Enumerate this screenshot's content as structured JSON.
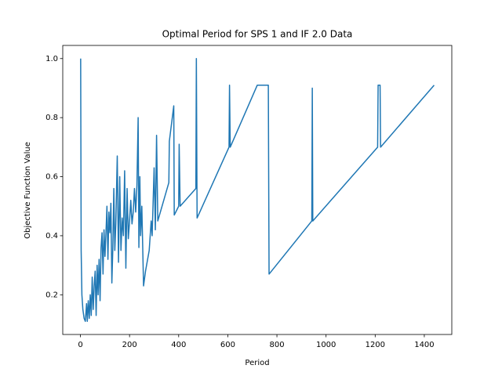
{
  "chart_data": {
    "type": "line",
    "title": "Optimal Period for SPS 1 and IF 2.0 Data",
    "xlabel": "Period",
    "ylabel": "Objective Function Value",
    "x": [
      1,
      3,
      6,
      10,
      15,
      20,
      25,
      28,
      32,
      36,
      40,
      44,
      48,
      52,
      56,
      60,
      64,
      68,
      72,
      76,
      80,
      84,
      88,
      92,
      96,
      100,
      104,
      108,
      112,
      116,
      120,
      124,
      128,
      132,
      136,
      140,
      144,
      150,
      155,
      160,
      165,
      170,
      175,
      180,
      185,
      190,
      195,
      200,
      205,
      210,
      215,
      220,
      225,
      230,
      235,
      238,
      242,
      245,
      250,
      257,
      265,
      280,
      288,
      292,
      300,
      305,
      310,
      315,
      360,
      362,
      380,
      382,
      400,
      402,
      406,
      470,
      472,
      475,
      605,
      607,
      610,
      720,
      765,
      768,
      942,
      944,
      946,
      1210,
      1212,
      1220,
      1222,
      1440
    ],
    "series": [
      {
        "color": "#1f77b4",
        "values": [
          1.0,
          0.35,
          0.2,
          0.15,
          0.12,
          0.11,
          0.17,
          0.11,
          0.18,
          0.12,
          0.2,
          0.13,
          0.26,
          0.15,
          0.23,
          0.28,
          0.13,
          0.3,
          0.2,
          0.32,
          0.18,
          0.36,
          0.41,
          0.27,
          0.42,
          0.33,
          0.41,
          0.5,
          0.32,
          0.48,
          0.41,
          0.51,
          0.24,
          0.36,
          0.56,
          0.35,
          0.44,
          0.67,
          0.31,
          0.6,
          0.35,
          0.46,
          0.4,
          0.62,
          0.29,
          0.56,
          0.39,
          0.45,
          0.52,
          0.44,
          0.48,
          0.56,
          0.48,
          0.57,
          0.8,
          0.36,
          0.6,
          0.4,
          0.5,
          0.23,
          0.28,
          0.35,
          0.45,
          0.4,
          0.63,
          0.42,
          0.74,
          0.45,
          0.58,
          0.72,
          0.84,
          0.47,
          0.5,
          0.71,
          0.5,
          0.56,
          1.0,
          0.46,
          0.7,
          0.91,
          0.7,
          0.91,
          0.91,
          0.27,
          0.45,
          0.9,
          0.45,
          0.7,
          0.91,
          0.91,
          0.7,
          0.91
        ]
      }
    ],
    "xlim": [
      -71.95,
      1511.95
    ],
    "xticks": [
      0,
      200,
      400,
      600,
      800,
      1000,
      1200,
      1400
    ],
    "ylim": [
      0.0655,
      1.0445
    ],
    "yticks": [
      0.2,
      0.4,
      0.6,
      0.8,
      {
        "value": 1,
        "label": "1.0"
      }
    ]
  }
}
